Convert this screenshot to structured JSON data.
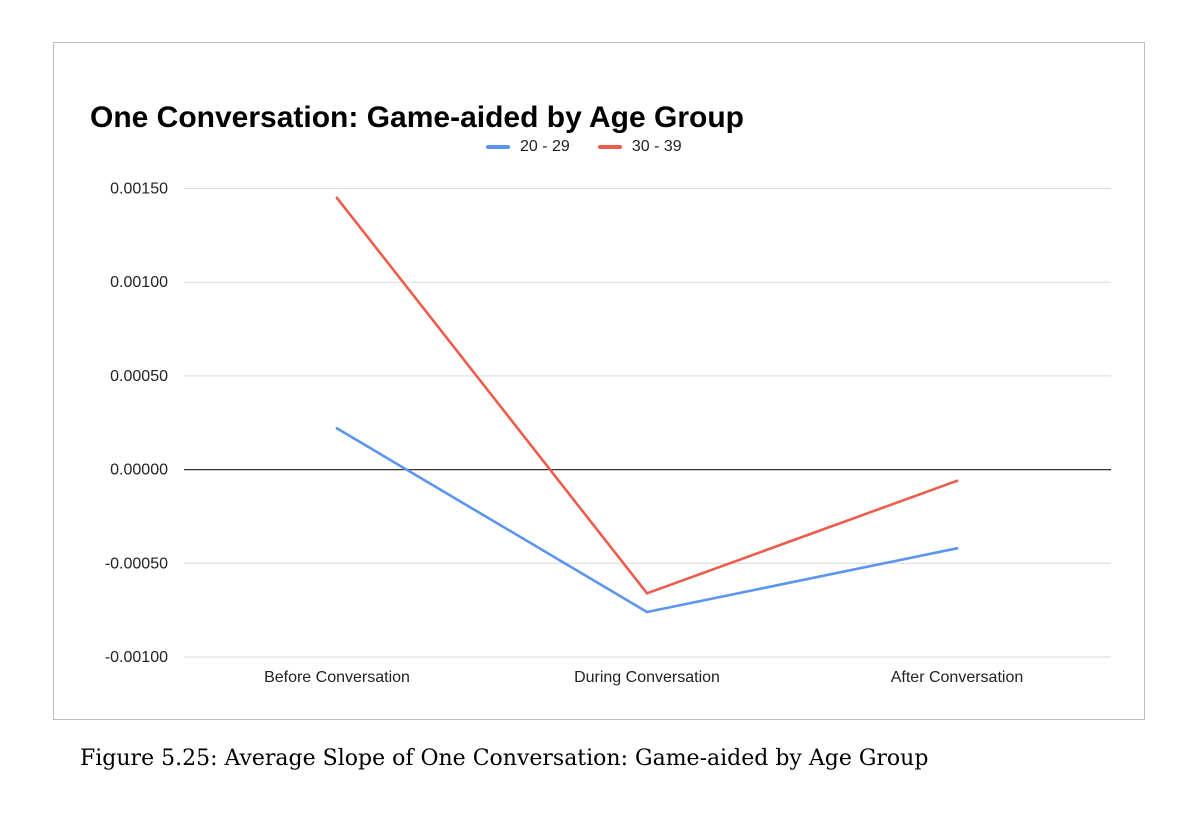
{
  "chart_data": {
    "type": "line",
    "title": "One Conversation: Game-aided by Age Group",
    "xlabel": "",
    "ylabel": "",
    "categories": [
      "Before Conversation",
      "During Conversation",
      "After Conversation"
    ],
    "series": [
      {
        "name": "20 - 29",
        "color": "#5b95f0",
        "values": [
          0.00022,
          -0.00076,
          -0.00042
        ]
      },
      {
        "name": "30 - 39",
        "color": "#ec5d4d",
        "values": [
          0.00145,
          -0.00066,
          -6e-05
        ]
      }
    ],
    "ylim": [
      -0.001,
      0.0015
    ],
    "yticks": [
      "0.00150",
      "0.00100",
      "0.00050",
      "0.00000",
      "-0.00050",
      "-0.00100"
    ],
    "grid": true,
    "legend_position": "top"
  },
  "caption": "Figure 5.25: Average Slope of One Conversation: Game-aided by Age Group"
}
